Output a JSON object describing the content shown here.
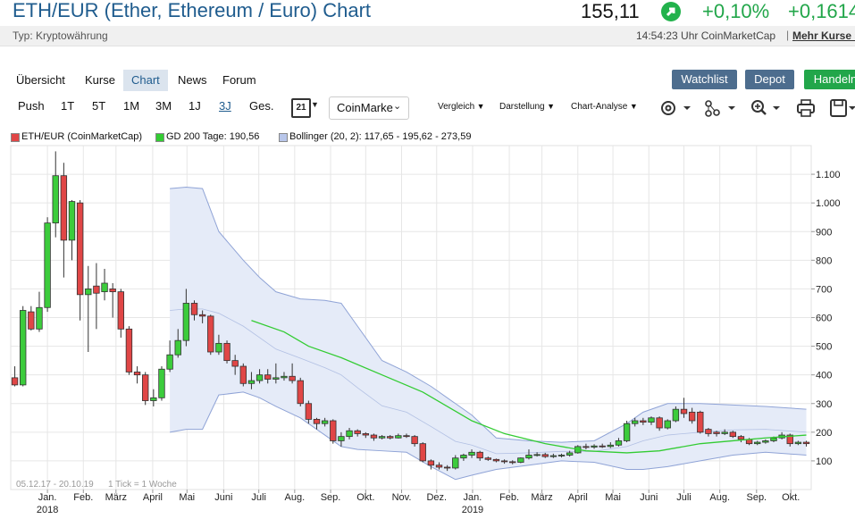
{
  "header": {
    "title": "ETH/EUR (Ether, Ethereum / Euro) Chart",
    "price": "155,11",
    "change_pct": "+0,10%",
    "change_abs": "+0,1614",
    "type_label": "Typ: Kryptowährung",
    "time_source": "14:54:23 Uhr CoinMarketCap",
    "more_link": "Mehr Kurse »"
  },
  "nav": {
    "tabs": [
      "Übersicht",
      "Kurse",
      "Chart",
      "News",
      "Forum"
    ],
    "active": 2,
    "buttons": [
      "Watchlist",
      "Depot",
      "Handeln"
    ]
  },
  "toolbar": {
    "ranges": [
      "Push",
      "1T",
      "5T",
      "1M",
      "3M",
      "1J",
      "3J",
      "Ges."
    ],
    "active": 6,
    "calendar": "21",
    "source": "CoinMarke",
    "menus": [
      "Vergleich",
      "Darstellung",
      "Chart-Analyse"
    ]
  },
  "chart_data": {
    "type": "candlestick",
    "ylim": [
      0,
      1200
    ],
    "yticks": [
      100,
      200,
      300,
      400,
      500,
      600,
      700,
      800,
      900,
      {
        "value": 1000,
        "label": "1.000"
      },
      {
        "value": 1100,
        "label": "1.100"
      }
    ],
    "xlim": [
      -0.5,
      97.6
    ],
    "xticks": [
      {
        "value": 4,
        "label": "Jan."
      },
      {
        "value": 8.4,
        "label": "Feb."
      },
      {
        "value": 12.4,
        "label": "März"
      },
      {
        "value": 16.9,
        "label": "April"
      },
      {
        "value": 21.1,
        "label": "Mai"
      },
      {
        "value": 25.6,
        "label": "Juni"
      },
      {
        "value": 29.9,
        "label": "Juli"
      },
      {
        "value": 34.3,
        "label": "Aug."
      },
      {
        "value": 38.7,
        "label": "Sep."
      },
      {
        "value": 43,
        "label": "Okt."
      },
      {
        "value": 47.4,
        "label": "Nov."
      },
      {
        "value": 51.7,
        "label": "Dez."
      },
      {
        "value": 56.1,
        "label": "Jan."
      },
      {
        "value": 60.6,
        "label": "Feb."
      },
      {
        "value": 64.6,
        "label": "März"
      },
      {
        "value": 69,
        "label": "April"
      },
      {
        "value": 73.3,
        "label": "Mai"
      },
      {
        "value": 77.7,
        "label": "Juni"
      },
      {
        "value": 82,
        "label": "Juli"
      },
      {
        "value": 86.4,
        "label": "Aug."
      },
      {
        "value": 90.9,
        "label": "Sep."
      },
      {
        "value": 95.1,
        "label": "Okt."
      }
    ],
    "year_ticks": [
      {
        "value": 4,
        "label": "2018"
      },
      {
        "value": 56.1,
        "label": "2019"
      }
    ],
    "grid": true,
    "annotations": [
      "05.12.17 - 20.10.19",
      "1 Tick = 1 Woche"
    ],
    "candles": {
      "name": "ETH/EUR (CoinMarketCap)",
      "up_color": "#3ccc3c",
      "down_color": "#e04646",
      "open": [
        390,
        365,
        620,
        560,
        635,
        930,
        1095,
        870,
        1000,
        680,
        710,
        690,
        700,
        690,
        560,
        410,
        400,
        310,
        320,
        420,
        470,
        520,
        650,
        610,
        605,
        480,
        510,
        450,
        430,
        370,
        380,
        400,
        385,
        390,
        395,
        380,
        300,
        245,
        230,
        240,
        170,
        185,
        205,
        195,
        190,
        180,
        185,
        180,
        188,
        185,
        160,
        100,
        85,
        78,
        75,
        110,
        120,
        130,
        110,
        105,
        100,
        97,
        95,
        110,
        120,
        122,
        115,
        118,
        120,
        128,
        150,
        148,
        152,
        150,
        155,
        170,
        230,
        240,
        235,
        250,
        215,
        240,
        280,
        270,
        270,
        210,
        200,
        195,
        200,
        185,
        175,
        160,
        165,
        170,
        180,
        190,
        160,
        165
      ],
      "high": [
        430,
        640,
        640,
        690,
        950,
        1180,
        1140,
        1010,
        1010,
        780,
        790,
        770,
        720,
        700,
        570,
        430,
        410,
        350,
        430,
        520,
        560,
        700,
        660,
        625,
        610,
        540,
        520,
        470,
        440,
        410,
        420,
        420,
        440,
        410,
        440,
        390,
        310,
        250,
        250,
        245,
        200,
        215,
        210,
        200,
        195,
        190,
        190,
        195,
        195,
        190,
        165,
        105,
        95,
        85,
        120,
        125,
        140,
        135,
        115,
        108,
        105,
        102,
        112,
        140,
        130,
        128,
        125,
        125,
        135,
        155,
        160,
        158,
        160,
        165,
        180,
        240,
        250,
        250,
        255,
        255,
        245,
        290,
        320,
        285,
        275,
        215,
        205,
        210,
        205,
        190,
        180,
        170,
        175,
        185,
        200,
        195,
        170,
        170
      ],
      "low": [
        360,
        360,
        555,
        550,
        620,
        880,
        740,
        800,
        590,
        480,
        560,
        660,
        600,
        530,
        400,
        370,
        295,
        290,
        310,
        410,
        460,
        500,
        590,
        580,
        470,
        470,
        440,
        400,
        360,
        350,
        370,
        370,
        370,
        380,
        370,
        290,
        230,
        210,
        220,
        160,
        150,
        175,
        185,
        180,
        170,
        175,
        175,
        178,
        180,
        150,
        95,
        70,
        70,
        65,
        70,
        100,
        110,
        100,
        100,
        95,
        90,
        88,
        92,
        105,
        115,
        110,
        110,
        112,
        115,
        125,
        140,
        142,
        145,
        145,
        150,
        165,
        220,
        225,
        225,
        205,
        210,
        235,
        250,
        230,
        195,
        185,
        185,
        190,
        180,
        165,
        155,
        155,
        160,
        165,
        175,
        150,
        155,
        150
      ],
      "close": [
        365,
        625,
        560,
        635,
        930,
        1095,
        870,
        1005,
        680,
        700,
        685,
        720,
        690,
        560,
        410,
        400,
        310,
        320,
        420,
        470,
        520,
        650,
        610,
        605,
        480,
        510,
        450,
        430,
        370,
        380,
        400,
        385,
        390,
        395,
        380,
        300,
        245,
        230,
        240,
        170,
        185,
        205,
        195,
        190,
        180,
        185,
        180,
        188,
        185,
        160,
        100,
        85,
        78,
        75,
        110,
        120,
        130,
        110,
        105,
        100,
        97,
        95,
        110,
        120,
        122,
        115,
        118,
        120,
        128,
        150,
        148,
        152,
        150,
        155,
        170,
        230,
        240,
        235,
        250,
        215,
        240,
        280,
        265,
        240,
        200,
        195,
        195,
        200,
        185,
        175,
        160,
        165,
        170,
        180,
        190,
        160,
        165,
        160
      ]
    },
    "gd200": {
      "name": "GD 200 Tage: 190,56",
      "color": "#33cc33",
      "x": [
        29,
        33,
        36,
        40,
        45,
        50,
        56,
        60,
        65,
        70,
        75,
        79,
        84,
        88,
        92,
        97
      ],
      "values": [
        590,
        550,
        500,
        460,
        400,
        340,
        240,
        195,
        160,
        135,
        128,
        135,
        160,
        170,
        180,
        190
      ]
    },
    "bollinger": {
      "name": "Bollinger (20, 2): 117,65 - 195,62 - 273,59",
      "color": "#8fa3d6",
      "fill": "#e5ebf8",
      "legend_color": "#b8c6ea",
      "x": [
        19,
        21,
        23,
        25,
        28,
        30,
        32,
        35,
        38,
        40,
        42,
        45,
        48,
        51,
        54,
        56,
        59,
        63,
        67,
        71,
        75,
        77,
        80,
        84,
        88,
        92,
        97
      ],
      "upper": [
        1050,
        1055,
        1050,
        900,
        800,
        740,
        690,
        665,
        660,
        650,
        570,
        450,
        410,
        360,
        300,
        260,
        180,
        170,
        165,
        170,
        230,
        270,
        300,
        300,
        295,
        290,
        280
      ],
      "middle": [
        625,
        630,
        630,
        615,
        570,
        530,
        490,
        458,
        425,
        400,
        355,
        292,
        270,
        220,
        168,
        155,
        125,
        128,
        133,
        133,
        150,
        170,
        190,
        200,
        208,
        210,
        200
      ],
      "lower": [
        200,
        210,
        210,
        330,
        340,
        320,
        290,
        250,
        190,
        150,
        140,
        135,
        130,
        80,
        35,
        50,
        70,
        85,
        100,
        95,
        70,
        70,
        80,
        100,
        120,
        130,
        120
      ]
    }
  }
}
